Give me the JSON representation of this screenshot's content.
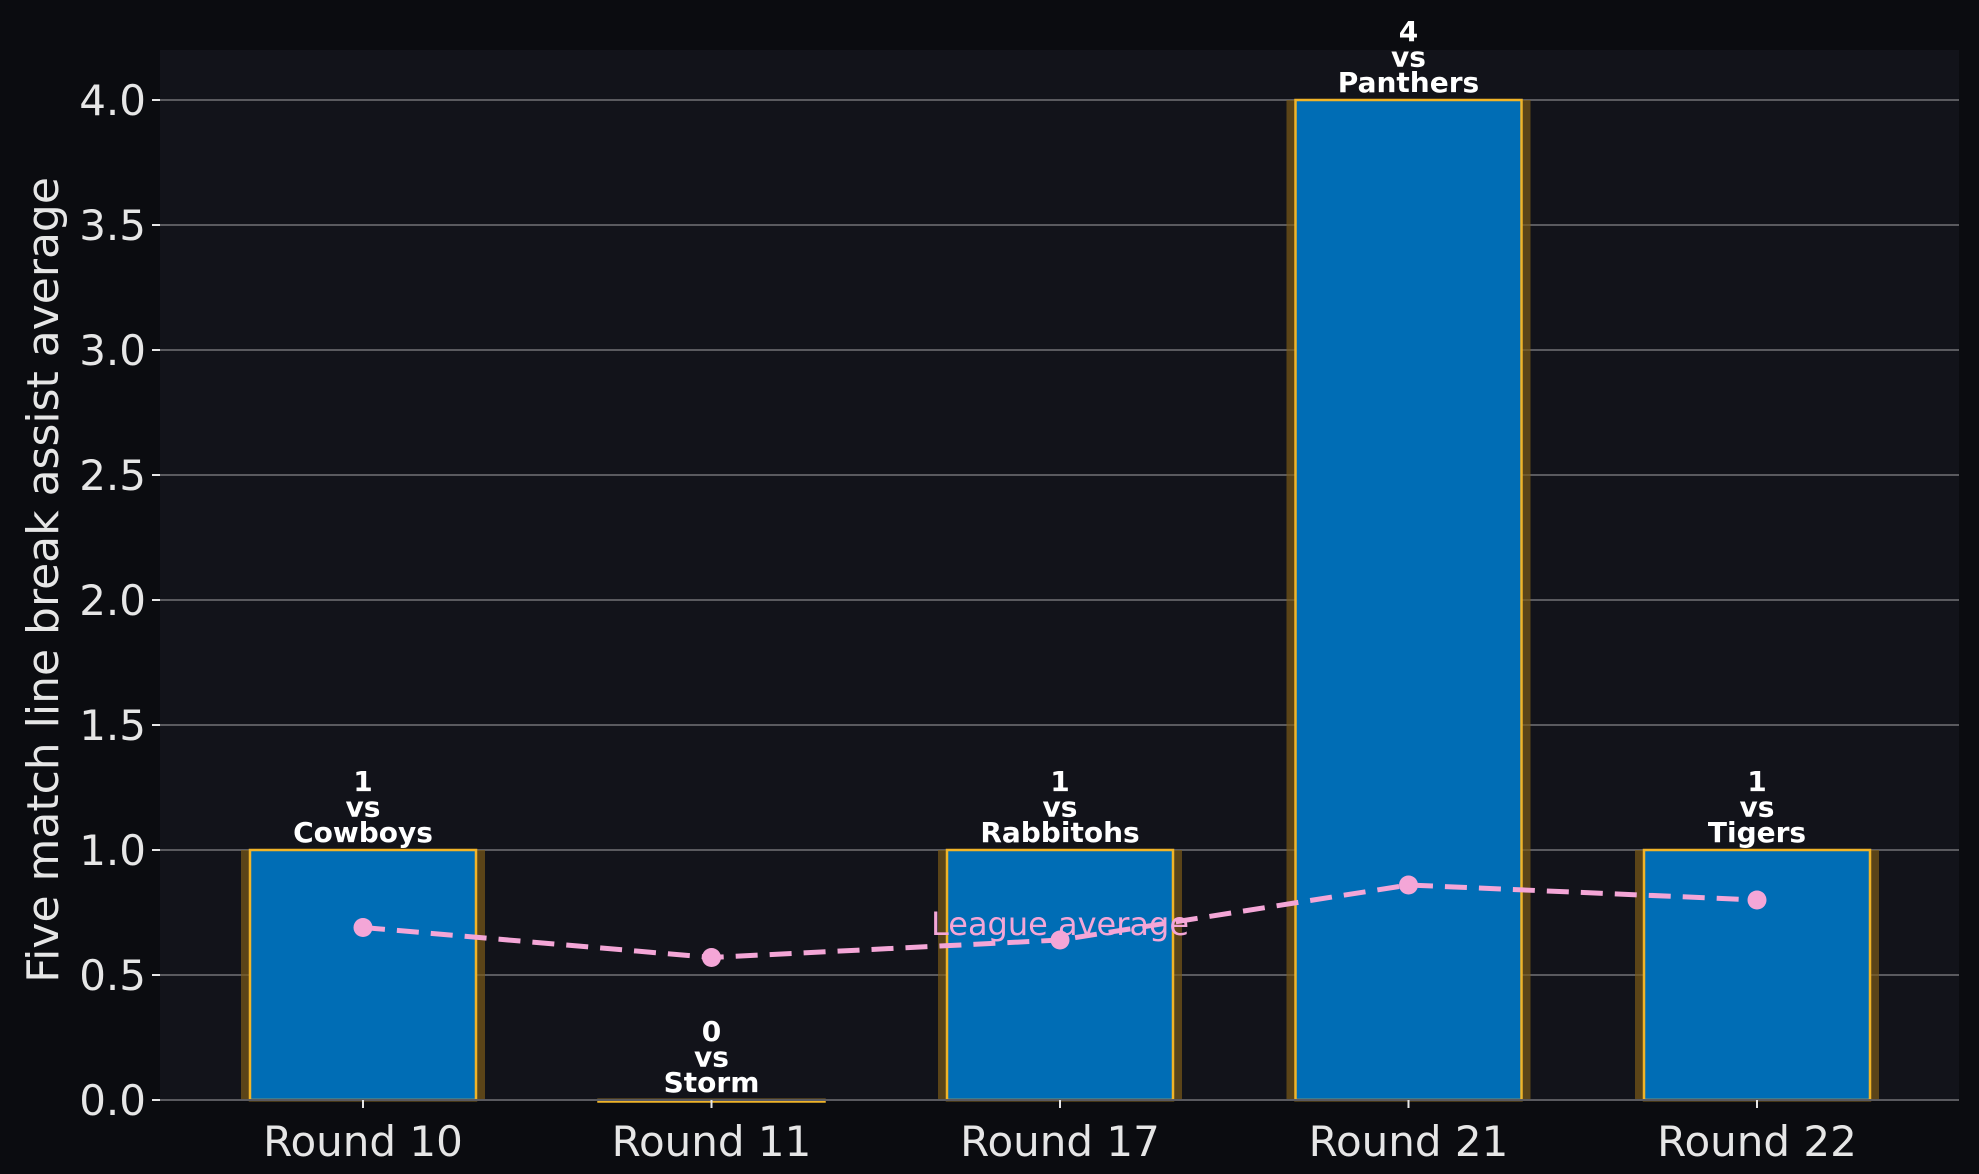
{
  "chart_data": {
    "type": "bar",
    "categories": [
      "Round 10",
      "Round 11",
      "Round 17",
      "Round 21",
      "Round 22"
    ],
    "values": [
      1,
      0,
      1,
      4,
      1
    ],
    "opponents": [
      "Cowboys",
      "Storm",
      "Rabbitohs",
      "Panthers",
      "Tigers"
    ],
    "bar_labels": [
      [
        "1",
        "vs",
        "Cowboys"
      ],
      [
        "0",
        "vs",
        "Storm"
      ],
      [
        "1",
        "vs",
        "Rabbitohs"
      ],
      [
        "4",
        "vs",
        "Panthers"
      ],
      [
        "1",
        "vs",
        "Tigers"
      ]
    ],
    "series": [
      {
        "name": "League average",
        "type": "line",
        "style": "dashed",
        "values": [
          0.69,
          0.57,
          0.64,
          0.86,
          0.8
        ]
      }
    ],
    "title": "",
    "xlabel": "",
    "ylabel": "Five match line break assist average",
    "ylim": [
      0,
      4.2
    ],
    "yticks": [
      0.0,
      0.5,
      1.0,
      1.5,
      2.0,
      2.5,
      3.0,
      3.5,
      4.0
    ],
    "ytick_labels": [
      "0.0",
      "0.5",
      "1.0",
      "1.5",
      "2.0",
      "2.5",
      "3.0",
      "3.5",
      "4.0"
    ],
    "grid": "horizontal",
    "colors": {
      "background": "#0b0c10",
      "plot_background": "#12131a",
      "bar_fill": "#006db5",
      "bar_edge": "#f0b429",
      "bar_glow": "#7a5a18",
      "grid": "#5a5a5f",
      "line": "#f4a6d7",
      "text": "#e6e6e6",
      "bar_text": "#ffffff"
    }
  }
}
